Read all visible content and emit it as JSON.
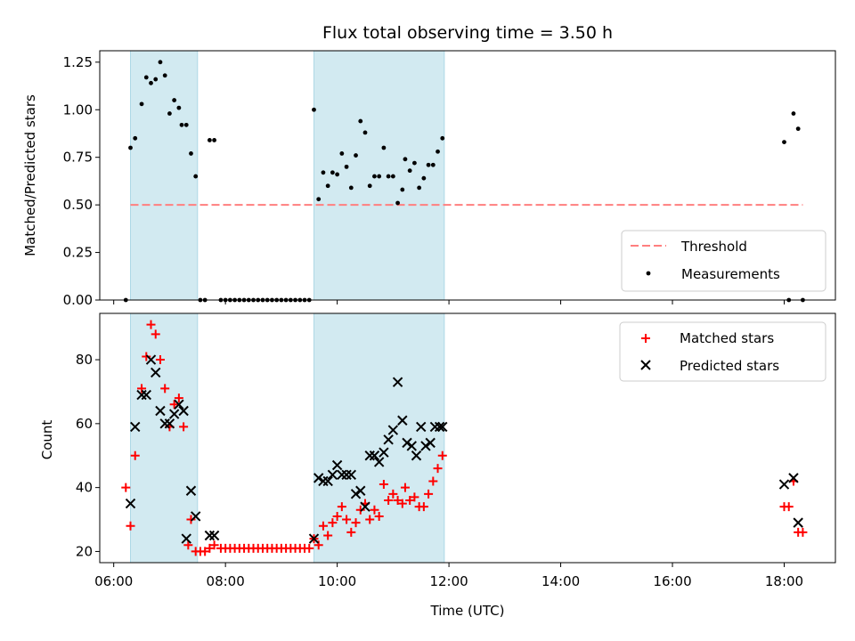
{
  "figure": {
    "title": "Flux total observing time = 3.50 h"
  },
  "colors": {
    "band": "#add8e6",
    "threshold": "#ff7f7f",
    "measurement": "#000000",
    "matched": "#ff0000",
    "predicted": "#000000"
  },
  "chart_data": [
    {
      "type": "scatter",
      "title": "Flux total observing time = 3.50 h",
      "xlabel": "",
      "ylabel": "Matched/Predicted stars",
      "xlim": [
        "05:45",
        "18:55"
      ],
      "ylim": [
        0,
        1.31
      ],
      "yticks": [
        "0.00",
        "0.25",
        "0.50",
        "0.75",
        "1.00",
        "1.25"
      ],
      "xticks": [
        "06:00",
        "08:00",
        "10:00",
        "12:00",
        "14:00",
        "16:00",
        "18:00"
      ],
      "bands": [
        [
          "06:18",
          "07:30"
        ],
        [
          "09:35",
          "11:55"
        ]
      ],
      "legend": {
        "placement": "lower-right",
        "entries": [
          "Threshold",
          "Measurements"
        ]
      },
      "threshold": {
        "name": "Threshold",
        "y": 0.5,
        "x_range": [
          "06:18",
          "18:20"
        ]
      },
      "series": [
        {
          "name": "Measurements",
          "marker": "dot",
          "points": [
            [
              "06:13",
              0.0
            ],
            [
              "06:18",
              0.8
            ],
            [
              "06:23",
              0.85
            ],
            [
              "06:30",
              1.03
            ],
            [
              "06:35",
              1.17
            ],
            [
              "06:40",
              1.14
            ],
            [
              "06:45",
              1.16
            ],
            [
              "06:50",
              1.25
            ],
            [
              "06:55",
              1.18
            ],
            [
              "07:00",
              0.98
            ],
            [
              "07:05",
              1.05
            ],
            [
              "07:10",
              1.01
            ],
            [
              "07:13",
              0.92
            ],
            [
              "07:18",
              0.92
            ],
            [
              "07:23",
              0.77
            ],
            [
              "07:28",
              0.65
            ],
            [
              "07:33",
              0.0
            ],
            [
              "07:38",
              0.0
            ],
            [
              "07:43",
              0.84
            ],
            [
              "07:48",
              0.84
            ],
            [
              "07:55",
              0.0
            ],
            [
              "08:00",
              0.0
            ],
            [
              "08:05",
              0.0
            ],
            [
              "08:10",
              0.0
            ],
            [
              "08:15",
              0.0
            ],
            [
              "08:20",
              0.0
            ],
            [
              "08:25",
              0.0
            ],
            [
              "08:30",
              0.0
            ],
            [
              "08:35",
              0.0
            ],
            [
              "08:40",
              0.0
            ],
            [
              "08:45",
              0.0
            ],
            [
              "08:50",
              0.0
            ],
            [
              "08:55",
              0.0
            ],
            [
              "09:00",
              0.0
            ],
            [
              "09:05",
              0.0
            ],
            [
              "09:10",
              0.0
            ],
            [
              "09:15",
              0.0
            ],
            [
              "09:20",
              0.0
            ],
            [
              "09:25",
              0.0
            ],
            [
              "09:30",
              0.0
            ],
            [
              "09:35",
              1.0
            ],
            [
              "09:40",
              0.53
            ],
            [
              "09:45",
              0.67
            ],
            [
              "09:50",
              0.6
            ],
            [
              "09:55",
              0.67
            ],
            [
              "10:00",
              0.66
            ],
            [
              "10:05",
              0.77
            ],
            [
              "10:10",
              0.7
            ],
            [
              "10:15",
              0.59
            ],
            [
              "10:20",
              0.76
            ],
            [
              "10:25",
              0.94
            ],
            [
              "10:30",
              0.88
            ],
            [
              "10:35",
              0.6
            ],
            [
              "10:40",
              0.65
            ],
            [
              "10:45",
              0.65
            ],
            [
              "10:50",
              0.8
            ],
            [
              "10:55",
              0.65
            ],
            [
              "11:00",
              0.65
            ],
            [
              "11:05",
              0.51
            ],
            [
              "11:10",
              0.58
            ],
            [
              "11:13",
              0.74
            ],
            [
              "11:18",
              0.68
            ],
            [
              "11:23",
              0.72
            ],
            [
              "11:28",
              0.59
            ],
            [
              "11:33",
              0.64
            ],
            [
              "11:38",
              0.71
            ],
            [
              "11:43",
              0.71
            ],
            [
              "11:48",
              0.78
            ],
            [
              "11:53",
              0.85
            ],
            [
              "18:00",
              0.83
            ],
            [
              "18:05",
              0.0
            ],
            [
              "18:10",
              0.98
            ],
            [
              "18:15",
              0.9
            ],
            [
              "18:20",
              0.0
            ]
          ]
        }
      ]
    },
    {
      "type": "scatter",
      "title": "",
      "xlabel": "Time (UTC)",
      "ylabel": "Count",
      "xlim": [
        "05:45",
        "18:55"
      ],
      "ylim": [
        16.5,
        94.5
      ],
      "yticks": [
        "20",
        "40",
        "60",
        "80"
      ],
      "xticks": [
        "06:00",
        "08:00",
        "10:00",
        "12:00",
        "14:00",
        "16:00",
        "18:00"
      ],
      "bands": [
        [
          "06:18",
          "07:30"
        ],
        [
          "09:35",
          "11:55"
        ]
      ],
      "legend": {
        "placement": "top-right",
        "entries": [
          "Matched stars",
          "Predicted stars"
        ]
      },
      "series": [
        {
          "name": "Matched stars",
          "marker": "plus",
          "points": [
            [
              "06:13",
              40
            ],
            [
              "06:18",
              28
            ],
            [
              "06:23",
              50
            ],
            [
              "06:30",
              71
            ],
            [
              "06:35",
              81
            ],
            [
              "06:40",
              91
            ],
            [
              "06:45",
              88
            ],
            [
              "06:50",
              80
            ],
            [
              "06:55",
              71
            ],
            [
              "07:00",
              59
            ],
            [
              "07:05",
              66
            ],
            [
              "07:10",
              68
            ],
            [
              "07:15",
              59
            ],
            [
              "07:20",
              22
            ],
            [
              "07:23",
              30
            ],
            [
              "07:28",
              20
            ],
            [
              "07:33",
              20
            ],
            [
              "07:38",
              20
            ],
            [
              "07:43",
              21
            ],
            [
              "07:48",
              22
            ],
            [
              "07:55",
              21
            ],
            [
              "08:00",
              21
            ],
            [
              "08:05",
              21
            ],
            [
              "08:10",
              21
            ],
            [
              "08:15",
              21
            ],
            [
              "08:20",
              21
            ],
            [
              "08:25",
              21
            ],
            [
              "08:30",
              21
            ],
            [
              "08:35",
              21
            ],
            [
              "08:40",
              21
            ],
            [
              "08:45",
              21
            ],
            [
              "08:50",
              21
            ],
            [
              "08:55",
              21
            ],
            [
              "09:00",
              21
            ],
            [
              "09:05",
              21
            ],
            [
              "09:10",
              21
            ],
            [
              "09:15",
              21
            ],
            [
              "09:20",
              21
            ],
            [
              "09:25",
              21
            ],
            [
              "09:30",
              21
            ],
            [
              "09:35",
              24
            ],
            [
              "09:40",
              22
            ],
            [
              "09:45",
              28
            ],
            [
              "09:50",
              25
            ],
            [
              "09:55",
              29
            ],
            [
              "10:00",
              31
            ],
            [
              "10:05",
              34
            ],
            [
              "10:10",
              30
            ],
            [
              "10:15",
              26
            ],
            [
              "10:20",
              29
            ],
            [
              "10:25",
              33
            ],
            [
              "10:30",
              35
            ],
            [
              "10:35",
              30
            ],
            [
              "10:40",
              33
            ],
            [
              "10:45",
              31
            ],
            [
              "10:50",
              41
            ],
            [
              "10:55",
              36
            ],
            [
              "11:00",
              38
            ],
            [
              "11:05",
              36
            ],
            [
              "11:10",
              35
            ],
            [
              "11:13",
              40
            ],
            [
              "11:18",
              36
            ],
            [
              "11:23",
              37
            ],
            [
              "11:28",
              34
            ],
            [
              "11:33",
              34
            ],
            [
              "11:38",
              38
            ],
            [
              "11:43",
              42
            ],
            [
              "11:48",
              46
            ],
            [
              "11:53",
              50
            ],
            [
              "18:00",
              34
            ],
            [
              "18:05",
              34
            ],
            [
              "18:10",
              42
            ],
            [
              "18:15",
              26
            ],
            [
              "18:20",
              26
            ]
          ]
        },
        {
          "name": "Predicted stars",
          "marker": "x",
          "points": [
            [
              "06:18",
              35
            ],
            [
              "06:23",
              59
            ],
            [
              "06:30",
              69
            ],
            [
              "06:35",
              69
            ],
            [
              "06:40",
              80
            ],
            [
              "06:45",
              76
            ],
            [
              "06:50",
              64
            ],
            [
              "06:55",
              60
            ],
            [
              "07:00",
              60
            ],
            [
              "07:05",
              63
            ],
            [
              "07:10",
              66
            ],
            [
              "07:15",
              64
            ],
            [
              "07:18",
              24
            ],
            [
              "07:23",
              39
            ],
            [
              "07:28",
              31
            ],
            [
              "07:43",
              25
            ],
            [
              "07:48",
              25
            ],
            [
              "09:35",
              24
            ],
            [
              "09:40",
              43
            ],
            [
              "09:45",
              42
            ],
            [
              "09:50",
              42
            ],
            [
              "09:55",
              44
            ],
            [
              "10:00",
              47
            ],
            [
              "10:05",
              44
            ],
            [
              "10:10",
              44
            ],
            [
              "10:15",
              44
            ],
            [
              "10:20",
              38
            ],
            [
              "10:25",
              39
            ],
            [
              "10:30",
              34
            ],
            [
              "10:35",
              50
            ],
            [
              "10:40",
              50
            ],
            [
              "10:45",
              48
            ],
            [
              "10:50",
              51
            ],
            [
              "10:55",
              55
            ],
            [
              "11:00",
              58
            ],
            [
              "11:05",
              73
            ],
            [
              "11:10",
              61
            ],
            [
              "11:15",
              54
            ],
            [
              "11:20",
              53
            ],
            [
              "11:25",
              50
            ],
            [
              "11:30",
              59
            ],
            [
              "11:35",
              53
            ],
            [
              "11:40",
              54
            ],
            [
              "11:45",
              59
            ],
            [
              "11:50",
              59
            ],
            [
              "11:53",
              59
            ],
            [
              "18:00",
              41
            ],
            [
              "18:10",
              43
            ],
            [
              "18:15",
              29
            ]
          ]
        }
      ]
    }
  ]
}
